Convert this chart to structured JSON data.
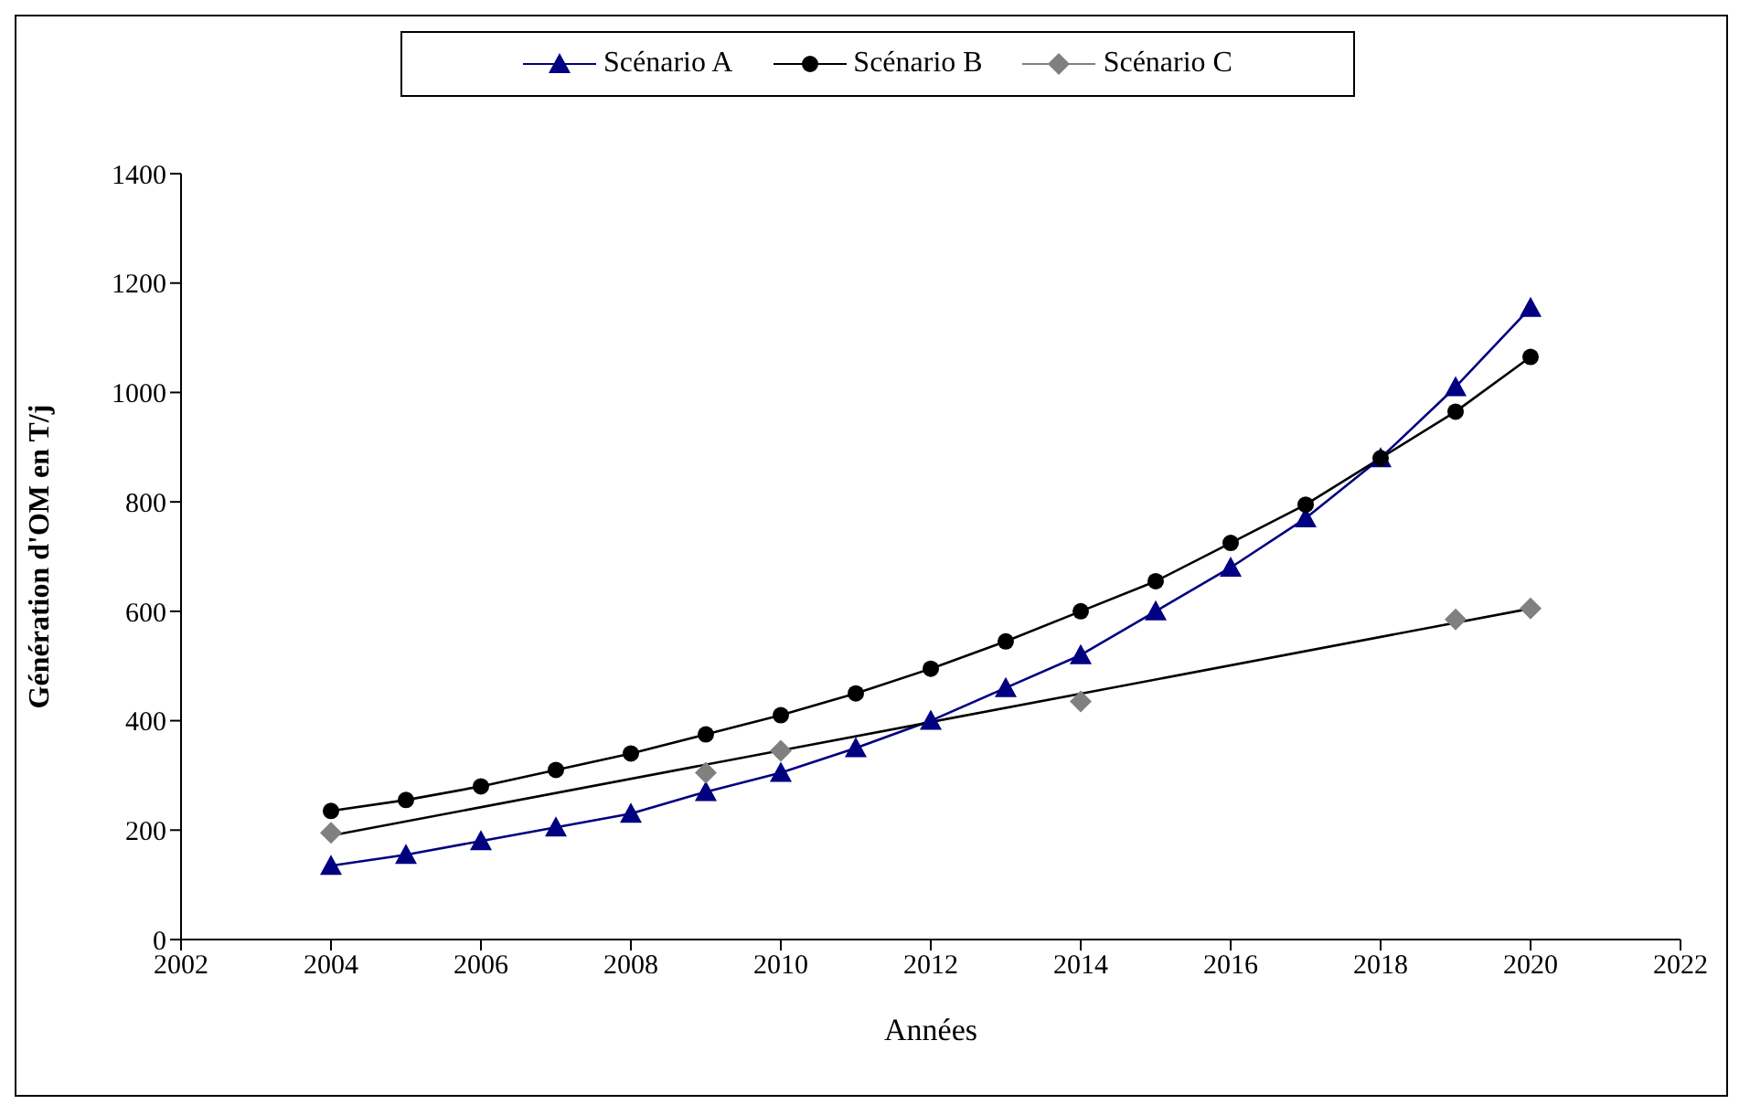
{
  "chart_data": {
    "type": "line",
    "xlabel": "Années",
    "ylabel": "Génération d'OM en T/j",
    "xlim": [
      2002,
      2022
    ],
    "xticks": [
      2002,
      2004,
      2006,
      2008,
      2010,
      2012,
      2014,
      2016,
      2018,
      2020,
      2022
    ],
    "ylim": [
      0,
      1400
    ],
    "yticks": [
      0,
      200,
      400,
      600,
      800,
      1000,
      1200,
      1400
    ],
    "legend": "top",
    "line_style": "solid",
    "series": [
      {
        "name": "Scénario A",
        "color": "#000080",
        "marker": "triangle",
        "x": [
          2004,
          2005,
          2006,
          2007,
          2008,
          2009,
          2010,
          2011,
          2012,
          2013,
          2014,
          2015,
          2016,
          2017,
          2018,
          2019,
          2020
        ],
        "values": [
          135,
          155,
          180,
          205,
          230,
          270,
          305,
          350,
          400,
          460,
          520,
          600,
          680,
          770,
          880,
          1010,
          1155
        ]
      },
      {
        "name": "Scénario B",
        "color": "#000000",
        "marker": "circle",
        "x": [
          2004,
          2005,
          2006,
          2007,
          2008,
          2009,
          2010,
          2011,
          2012,
          2013,
          2014,
          2015,
          2016,
          2017,
          2018,
          2019,
          2020
        ],
        "values": [
          235,
          255,
          280,
          310,
          340,
          375,
          410,
          450,
          495,
          545,
          600,
          655,
          725,
          795,
          880,
          965,
          1065
        ]
      },
      {
        "name": "Scénario C",
        "type": "scatter",
        "color": "#808080",
        "marker": "diamond",
        "x": [
          2004,
          2009,
          2010,
          2014,
          2019,
          2020
        ],
        "values": [
          195,
          305,
          345,
          435,
          585,
          605
        ]
      },
      {
        "type": "line",
        "color": "#000000",
        "marker": "none",
        "x": [
          2004,
          2020
        ],
        "values": [
          190,
          605
        ]
      }
    ]
  }
}
